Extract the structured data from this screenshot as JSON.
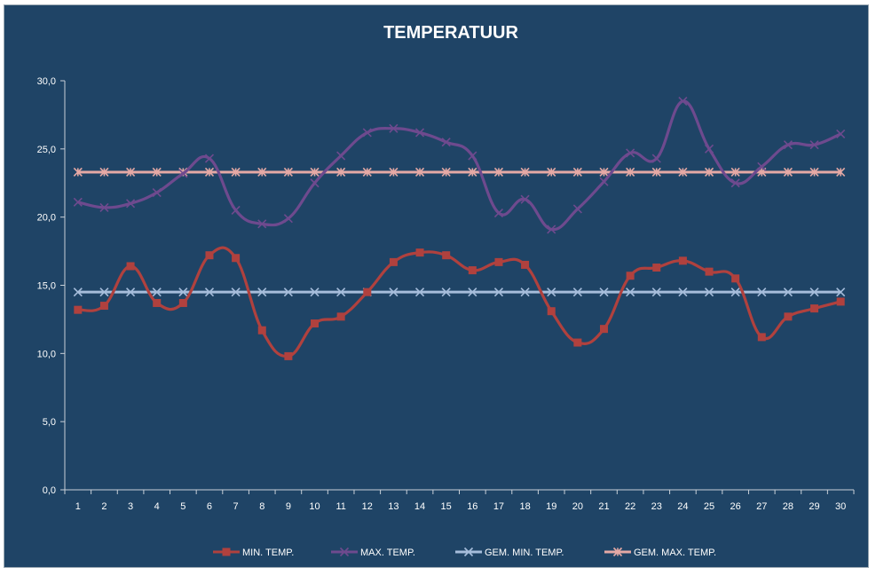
{
  "chart_data": {
    "type": "line",
    "title": "TEMPERATUUR",
    "xlabel": "",
    "ylabel": "",
    "ylim": [
      0,
      30
    ],
    "y_ticks": [
      "0,0",
      "5,0",
      "10,0",
      "15,0",
      "20,0",
      "25,0",
      "30,0"
    ],
    "categories": [
      "1",
      "2",
      "3",
      "4",
      "5",
      "6",
      "7",
      "8",
      "9",
      "10",
      "11",
      "12",
      "13",
      "14",
      "15",
      "16",
      "17",
      "18",
      "19",
      "20",
      "21",
      "22",
      "23",
      "24",
      "25",
      "26",
      "27",
      "28",
      "29",
      "30"
    ],
    "grid": false,
    "legend_position": "bottom",
    "series": [
      {
        "name": "MIN. TEMP.",
        "color": "#b0413e",
        "marker": "square",
        "values": [
          13.2,
          13.5,
          16.4,
          13.7,
          13.7,
          17.2,
          17.0,
          11.7,
          9.8,
          12.2,
          12.7,
          14.5,
          16.7,
          17.4,
          17.2,
          16.1,
          16.7,
          16.5,
          13.1,
          10.8,
          11.8,
          15.7,
          16.3,
          16.8,
          16.0,
          15.5,
          11.2,
          12.7,
          13.3,
          13.8
        ]
      },
      {
        "name": "MAX. TEMP.",
        "color": "#6e4a8e",
        "marker": "x",
        "values": [
          21.1,
          20.7,
          21.0,
          21.8,
          23.2,
          24.3,
          20.5,
          19.5,
          19.9,
          22.5,
          24.5,
          26.2,
          26.5,
          26.2,
          25.5,
          24.5,
          20.3,
          21.3,
          19.1,
          20.6,
          22.6,
          24.7,
          24.3,
          28.5,
          25.0,
          22.5,
          23.7,
          25.3,
          25.3,
          26.1
        ]
      },
      {
        "name": "GEM. MIN. TEMP.",
        "color": "#a6bddb",
        "marker": "x",
        "values": [
          14.5,
          14.5,
          14.5,
          14.5,
          14.5,
          14.5,
          14.5,
          14.5,
          14.5,
          14.5,
          14.5,
          14.5,
          14.5,
          14.5,
          14.5,
          14.5,
          14.5,
          14.5,
          14.5,
          14.5,
          14.5,
          14.5,
          14.5,
          14.5,
          14.5,
          14.5,
          14.5,
          14.5,
          14.5,
          14.5
        ]
      },
      {
        "name": "GEM. MAX. TEMP.",
        "color": "#e5a9a5",
        "marker": "asterisk",
        "values": [
          23.3,
          23.3,
          23.3,
          23.3,
          23.3,
          23.3,
          23.3,
          23.3,
          23.3,
          23.3,
          23.3,
          23.3,
          23.3,
          23.3,
          23.3,
          23.3,
          23.3,
          23.3,
          23.3,
          23.3,
          23.3,
          23.3,
          23.3,
          23.3,
          23.3,
          23.3,
          23.3,
          23.3,
          23.3,
          23.3
        ]
      }
    ],
    "colors": {
      "background": "#1f4466",
      "axis": "#c8d0d8",
      "text": "#ffffff"
    }
  }
}
